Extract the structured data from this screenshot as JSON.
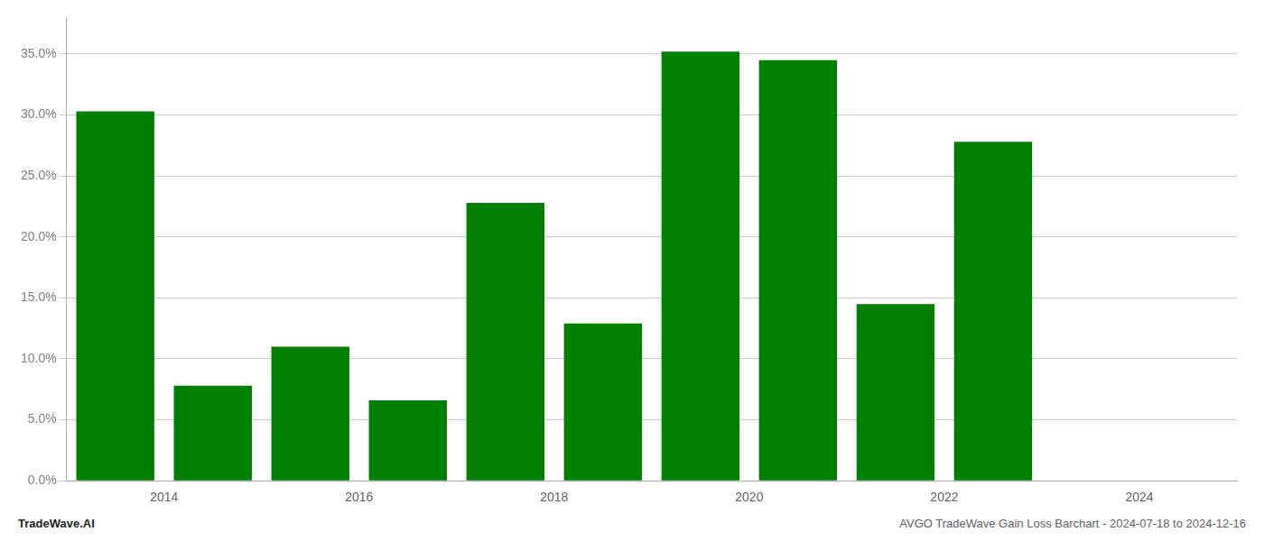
{
  "chart_data": {
    "type": "bar",
    "x": [
      2013,
      2014,
      2015,
      2016,
      2017,
      2018,
      2019,
      2020,
      2021,
      2022,
      2023
    ],
    "values": [
      0.303,
      0.078,
      0.11,
      0.066,
      0.228,
      0.129,
      0.352,
      0.345,
      0.145,
      0.278,
      0.0
    ],
    "color": "#008000",
    "xlim": [
      2012.5,
      2024.5
    ],
    "xticks": [
      {
        "value": 2013.5,
        "label": "2014"
      },
      {
        "value": 2015.5,
        "label": "2016"
      },
      {
        "value": 2017.5,
        "label": "2018"
      },
      {
        "value": 2019.5,
        "label": "2020"
      },
      {
        "value": 2021.5,
        "label": "2022"
      },
      {
        "value": 2023.5,
        "label": "2024"
      }
    ],
    "ylim": [
      0,
      0.38
    ],
    "yticks": [
      {
        "value": 0.0,
        "label": "0.0%"
      },
      {
        "value": 0.05,
        "label": "5.0%"
      },
      {
        "value": 0.1,
        "label": "10.0%"
      },
      {
        "value": 0.15,
        "label": "15.0%"
      },
      {
        "value": 0.2,
        "label": "20.0%"
      },
      {
        "value": 0.25,
        "label": "25.0%"
      },
      {
        "value": 0.3,
        "label": "30.0%"
      },
      {
        "value": 0.35,
        "label": "35.0%"
      }
    ],
    "grid": true,
    "annotations": [
      "TradeWave.AI",
      "AVGO TradeWave Gain Loss Barchart - 2024-07-18 to 2024-12-16"
    ]
  }
}
